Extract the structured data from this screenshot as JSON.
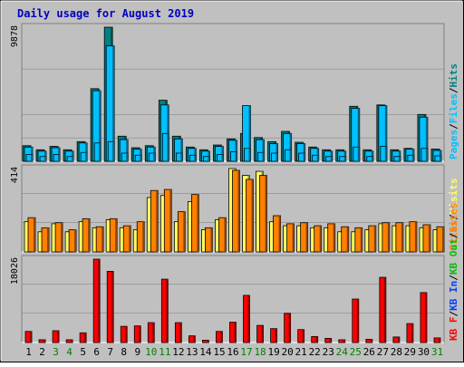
{
  "title": "Daily usage for August 2019",
  "colors": {
    "frame": "#c0c0c0",
    "title": "#0000c0",
    "hits": "#008080",
    "files": "#00c0ff",
    "pages": "#00c0ff",
    "visits": "#ffff60",
    "sites": "#ff8000",
    "kbin": "#0040ff",
    "kbout": "#00c000",
    "kbf": "#ff0000",
    "weekend_day": "#008000",
    "weekday_day": "#000000"
  },
  "chart_data": [
    {
      "type": "bar",
      "name": "hits-files-pages",
      "ymax_label": "9878",
      "ylim": [
        0,
        9878
      ],
      "legend": [
        "Pages",
        "/",
        "Files",
        "/",
        "Hits"
      ],
      "categories": [
        "1",
        "2",
        "3",
        "4",
        "5",
        "6",
        "7",
        "8",
        "9",
        "10",
        "11",
        "12",
        "13",
        "14",
        "15",
        "16",
        "17",
        "18",
        "19",
        "20",
        "21",
        "22",
        "23",
        "24",
        "25",
        "26",
        "27",
        "28",
        "29",
        "30",
        "31"
      ],
      "series": [
        {
          "name": "Hits",
          "values": [
            1150,
            850,
            1100,
            850,
            1450,
            5350,
            9878,
            1850,
            1000,
            1150,
            4500,
            1850,
            1050,
            850,
            1200,
            1650,
            2050,
            1750,
            1450,
            2200,
            1400,
            1050,
            850,
            850,
            4050,
            850,
            4150,
            850,
            950,
            3450,
            900
          ]
        },
        {
          "name": "Files",
          "values": [
            1050,
            750,
            1000,
            750,
            1350,
            5200,
            8500,
            1600,
            900,
            1050,
            4150,
            1650,
            950,
            750,
            1100,
            1550,
            4100,
            1600,
            1300,
            2050,
            1300,
            950,
            750,
            750,
            3900,
            750,
            4100,
            750,
            900,
            3250,
            800
          ]
        },
        {
          "name": "Pages",
          "values": [
            500,
            350,
            500,
            350,
            650,
            1350,
            1450,
            600,
            450,
            600,
            2050,
            600,
            450,
            350,
            500,
            700,
            950,
            650,
            600,
            850,
            600,
            450,
            350,
            350,
            1050,
            350,
            1100,
            350,
            450,
            950,
            400
          ]
        }
      ]
    },
    {
      "type": "bar",
      "name": "visits-sites",
      "ymax_label": "414",
      "ylim": [
        0,
        414
      ],
      "legend": [
        "Sites",
        "/",
        "Visits"
      ],
      "categories": [
        "1",
        "2",
        "3",
        "4",
        "5",
        "6",
        "7",
        "8",
        "9",
        "10",
        "11",
        "12",
        "13",
        "14",
        "15",
        "16",
        "17",
        "18",
        "19",
        "20",
        "21",
        "22",
        "23",
        "24",
        "25",
        "26",
        "27",
        "28",
        "29",
        "30",
        "31"
      ],
      "series": [
        {
          "name": "Visits",
          "values": [
            150,
            100,
            140,
            100,
            150,
            120,
            160,
            120,
            110,
            270,
            280,
            150,
            250,
            110,
            160,
            414,
            380,
            400,
            150,
            130,
            130,
            120,
            120,
            100,
            100,
            110,
            140,
            130,
            130,
            120,
            110
          ]
        },
        {
          "name": "Sites",
          "values": [
            170,
            120,
            145,
            110,
            165,
            125,
            165,
            130,
            150,
            305,
            310,
            200,
            285,
            120,
            170,
            405,
            360,
            380,
            180,
            140,
            145,
            130,
            140,
            125,
            120,
            130,
            145,
            145,
            150,
            135,
            125
          ]
        }
      ]
    },
    {
      "type": "bar",
      "name": "kbytes",
      "ymax_label": "18026",
      "ylim": [
        0,
        18026
      ],
      "legend": [
        "KB F",
        "/",
        "KB In",
        "/",
        "KB Out",
        "/",
        "Sites"
      ],
      "categories": [
        "1",
        "2",
        "3",
        "4",
        "5",
        "6",
        "7",
        "8",
        "9",
        "10",
        "11",
        "12",
        "13",
        "14",
        "15",
        "16",
        "17",
        "18",
        "19",
        "20",
        "21",
        "22",
        "23",
        "24",
        "25",
        "26",
        "27",
        "28",
        "29",
        "30",
        "31"
      ],
      "series": [
        {
          "name": "KB F",
          "values": [
            2400,
            600,
            2550,
            600,
            2100,
            18026,
            15400,
            3500,
            3600,
            4300,
            13700,
            4300,
            1450,
            500,
            2400,
            4400,
            10200,
            3700,
            3000,
            6300,
            2800,
            1300,
            900,
            600,
            9400,
            700,
            14100,
            1200,
            4100,
            10800,
            1000
          ]
        }
      ]
    }
  ]
}
